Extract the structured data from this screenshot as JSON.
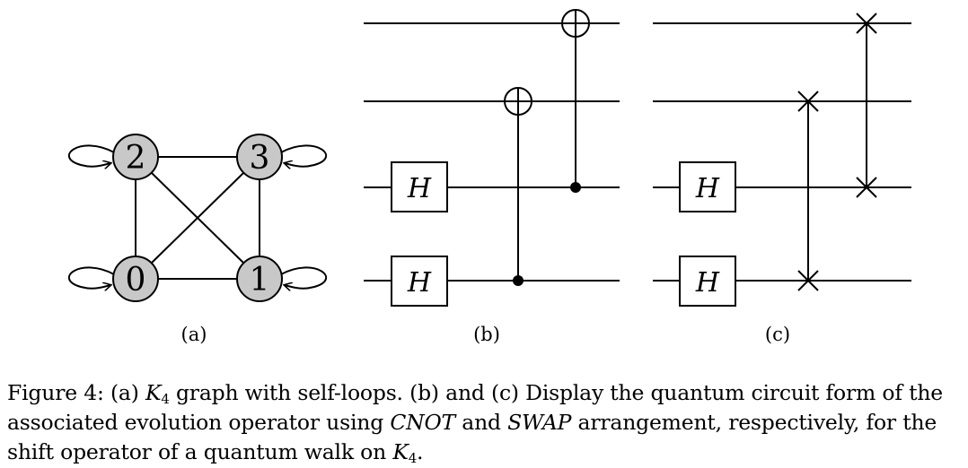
{
  "graph": {
    "nodes": [
      "2",
      "3",
      "0",
      "1"
    ],
    "panel_label": "(a)"
  },
  "circuit_b": {
    "gate_label": "H",
    "panel_label": "(b)"
  },
  "circuit_c": {
    "gate_label": "H",
    "panel_label": "(c)"
  },
  "caption": {
    "p1": "Figure 4: (a) ",
    "K": "K",
    "sub4": "4",
    "p2": " graph with self-loops. (b) and (c) Display the quantum circuit form of the associated evolution operator using ",
    "cnot": "CNOT",
    "p3": " and ",
    "swap": "SWAP",
    "p4": " arrangement, respectively, for the shift operator of a quantum walk on ",
    "p5": "."
  }
}
